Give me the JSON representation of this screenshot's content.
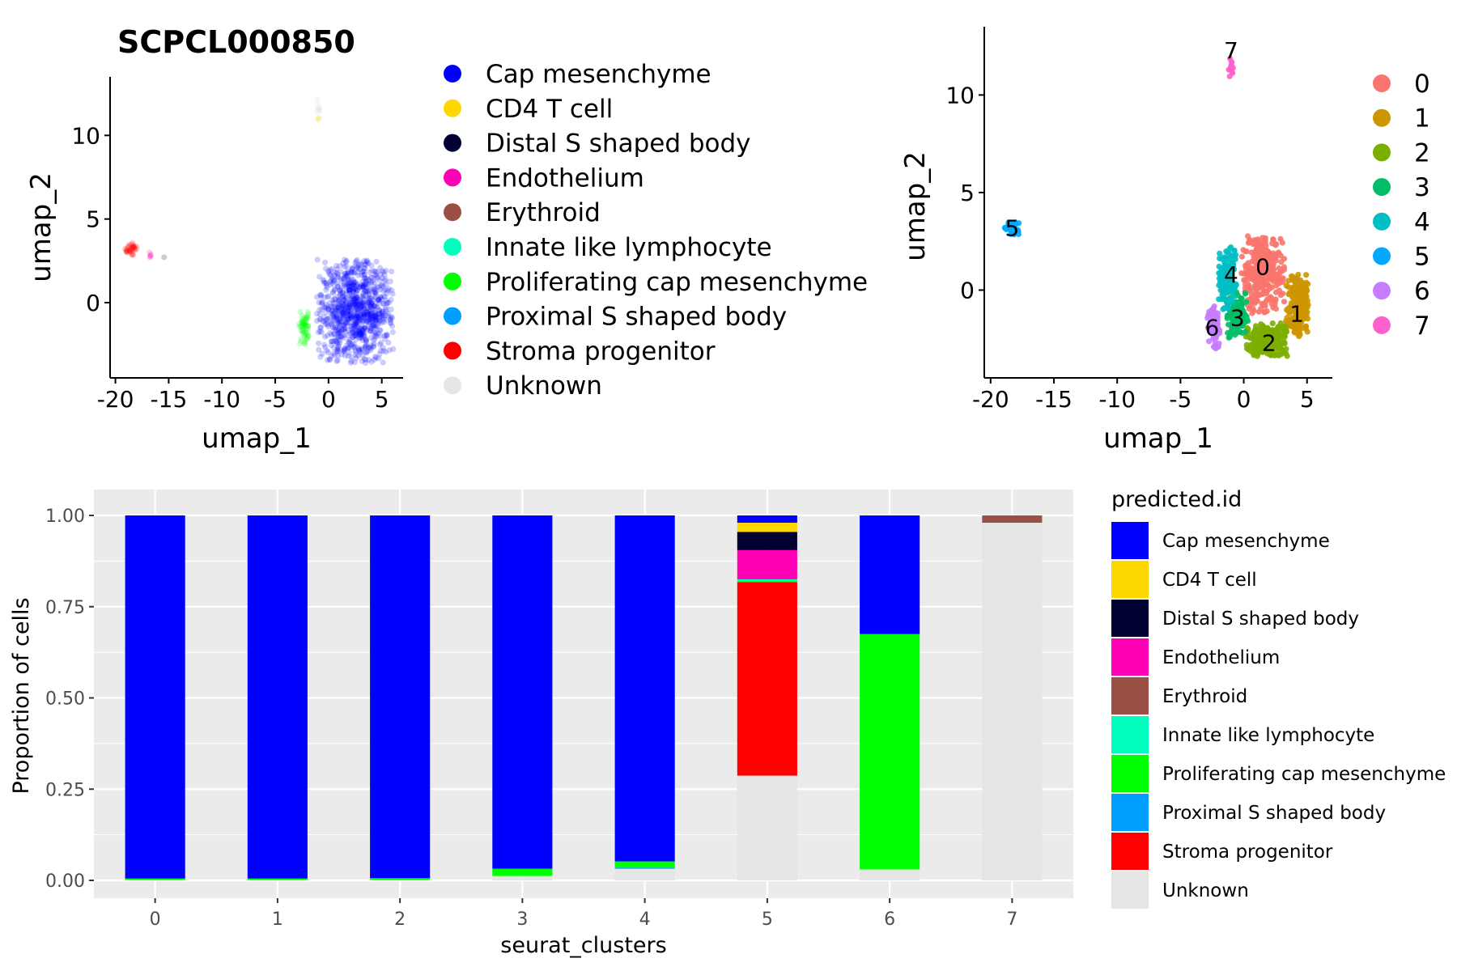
{
  "colors": {
    "celltypes": {
      "Cap mesenchyme": "#0000ff",
      "CD4 T cell": "#ffd700",
      "Distal S shaped body": "#000033",
      "Endothelium": "#ff00b6",
      "Erythroid": "#9a4f45",
      "Innate like lymphocyte": "#00ffbe",
      "Proliferating cap mesenchyme": "#00ff00",
      "Proximal S shaped body": "#009fff",
      "Stroma progenitor": "#ff0000",
      "Unknown": "#e5e5e5"
    },
    "clusters": [
      "#f8766d",
      "#cd9600",
      "#7cae00",
      "#00be67",
      "#00bfc4",
      "#00a9ff",
      "#c77cff",
      "#ff61cc"
    ]
  },
  "chart_data": [
    {
      "type": "scatter",
      "title": "SCPCL000850",
      "xlabel": "umap_1",
      "ylabel": "umap_2",
      "xlim": [
        -20.5,
        7
      ],
      "ylim": [
        -4.5,
        13.5
      ],
      "x_ticks": [
        "-20",
        "-15",
        "-10",
        "-5",
        "0",
        "5"
      ],
      "y_ticks": [
        "0",
        "5",
        "10"
      ],
      "legend_placement": "right",
      "legend": [
        "Cap mesenchyme",
        "CD4 T cell",
        "Distal S shaped body",
        "Endothelium",
        "Erythroid",
        "Innate like lymphocyte",
        "Proliferating cap mesenchyme",
        "Proximal S shaped body",
        "Stroma progenitor",
        "Unknown"
      ],
      "groups": [
        {
          "label": "Cap mesenchyme",
          "center": [
            2.5,
            -0.5
          ],
          "spread": [
            3.6,
            3.1
          ],
          "n": 900
        },
        {
          "label": "Proliferating cap mesenchyme",
          "center": [
            -2.3,
            -1.5
          ],
          "spread": [
            0.5,
            1.0
          ],
          "n": 60
        },
        {
          "label": "Stroma progenitor",
          "center": [
            -18.5,
            3.2
          ],
          "spread": [
            0.7,
            0.4
          ],
          "n": 35
        },
        {
          "label": "Endothelium",
          "center": [
            -16.8,
            2.8
          ],
          "spread": [
            0.3,
            0.3
          ],
          "n": 5
        },
        {
          "label": "Distal S shaped body",
          "center": [
            -15.4,
            2.8
          ],
          "spread": [
            0.1,
            0.1
          ],
          "n": 1
        },
        {
          "label": "Unknown",
          "center": [
            -1.0,
            11.6
          ],
          "spread": [
            0.2,
            0.8
          ],
          "n": 14
        },
        {
          "label": "CD4 T cell",
          "center": [
            -0.9,
            11.0
          ],
          "spread": [
            0.1,
            0.2
          ],
          "n": 2
        }
      ]
    },
    {
      "type": "scatter",
      "xlabel": "umap_1",
      "ylabel": "umap_2",
      "xlim": [
        -20.5,
        7
      ],
      "ylim": [
        -4.5,
        13.5
      ],
      "x_ticks": [
        "-20",
        "-15",
        "-10",
        "-5",
        "0",
        "5"
      ],
      "y_ticks": [
        "0",
        "5",
        "10"
      ],
      "legend_placement": "right",
      "legend": [
        "0",
        "1",
        "2",
        "3",
        "4",
        "5",
        "6",
        "7"
      ],
      "cluster_labels": [
        {
          "label": "0",
          "x": 1.5,
          "y": 1.2
        },
        {
          "label": "1",
          "x": 4.2,
          "y": -1.2
        },
        {
          "label": "2",
          "x": 2.0,
          "y": -2.7
        },
        {
          "label": "3",
          "x": -0.5,
          "y": -1.4
        },
        {
          "label": "4",
          "x": -1.0,
          "y": 0.8
        },
        {
          "label": "5",
          "x": -18.3,
          "y": 3.2
        },
        {
          "label": "6",
          "x": -2.5,
          "y": -1.9
        },
        {
          "label": "7",
          "x": -1.0,
          "y": 12.3
        }
      ],
      "groups": [
        {
          "label": "0",
          "center": [
            1.5,
            0.8
          ],
          "spread": [
            1.7,
            2.0
          ],
          "n": 320
        },
        {
          "label": "1",
          "center": [
            4.2,
            -0.8
          ],
          "spread": [
            0.9,
            1.6
          ],
          "n": 220
        },
        {
          "label": "2",
          "center": [
            1.8,
            -2.5
          ],
          "spread": [
            1.7,
            0.9
          ],
          "n": 220
        },
        {
          "label": "3",
          "center": [
            -0.5,
            -1.3
          ],
          "spread": [
            0.9,
            1.2
          ],
          "n": 150
        },
        {
          "label": "4",
          "center": [
            -1.3,
            0.6
          ],
          "spread": [
            0.7,
            1.6
          ],
          "n": 140
        },
        {
          "label": "6",
          "center": [
            -2.4,
            -1.8
          ],
          "spread": [
            0.5,
            1.2
          ],
          "n": 70
        },
        {
          "label": "5",
          "center": [
            -18.3,
            3.2
          ],
          "spread": [
            0.6,
            0.4
          ],
          "n": 40
        },
        {
          "label": "7",
          "center": [
            -1.0,
            11.6
          ],
          "spread": [
            0.2,
            0.8
          ],
          "n": 14
        }
      ]
    },
    {
      "type": "bar",
      "xlabel": "seurat_clusters",
      "ylabel": "Proportion of cells",
      "ylim": [
        0,
        1
      ],
      "y_ticks": [
        "0.00",
        "0.25",
        "0.50",
        "0.75",
        "1.00"
      ],
      "legend_title": "predicted.id",
      "legend_placement": "right",
      "categories": [
        "0",
        "1",
        "2",
        "3",
        "4",
        "5",
        "6",
        "7"
      ],
      "series_order": [
        "Cap mesenchyme",
        "CD4 T cell",
        "Distal S shaped body",
        "Endothelium",
        "Erythroid",
        "Innate like lymphocyte",
        "Proliferating cap mesenchyme",
        "Proximal S shaped body",
        "Stroma progenitor",
        "Unknown"
      ],
      "series": [
        {
          "name": "Cap mesenchyme",
          "values": [
            0.995,
            0.995,
            0.994,
            0.968,
            0.948,
            0.02,
            0.325,
            0
          ]
        },
        {
          "name": "CD4 T cell",
          "values": [
            0,
            0,
            0,
            0,
            0,
            0.025,
            0,
            0
          ]
        },
        {
          "name": "Distal S shaped body",
          "values": [
            0,
            0,
            0,
            0,
            0,
            0.05,
            0,
            0
          ]
        },
        {
          "name": "Endothelium",
          "values": [
            0,
            0,
            0,
            0,
            0,
            0.08,
            0,
            0
          ]
        },
        {
          "name": "Erythroid",
          "values": [
            0,
            0,
            0,
            0,
            0,
            0,
            0,
            0.02
          ]
        },
        {
          "name": "Innate like lymphocyte",
          "values": [
            0,
            0,
            0,
            0,
            0,
            0.005,
            0,
            0
          ]
        },
        {
          "name": "Proliferating cap mesenchyme",
          "values": [
            0.004,
            0.004,
            0.005,
            0.02,
            0.017,
            0.003,
            0.645,
            0
          ]
        },
        {
          "name": "Proximal S shaped body",
          "values": [
            0,
            0,
            0,
            0,
            0.003,
            0,
            0,
            0
          ]
        },
        {
          "name": "Stroma progenitor",
          "values": [
            0,
            0,
            0,
            0,
            0,
            0.53,
            0,
            0
          ]
        },
        {
          "name": "Unknown",
          "values": [
            0.001,
            0.001,
            0.001,
            0.012,
            0.032,
            0.287,
            0.03,
            0.98
          ]
        }
      ]
    }
  ]
}
